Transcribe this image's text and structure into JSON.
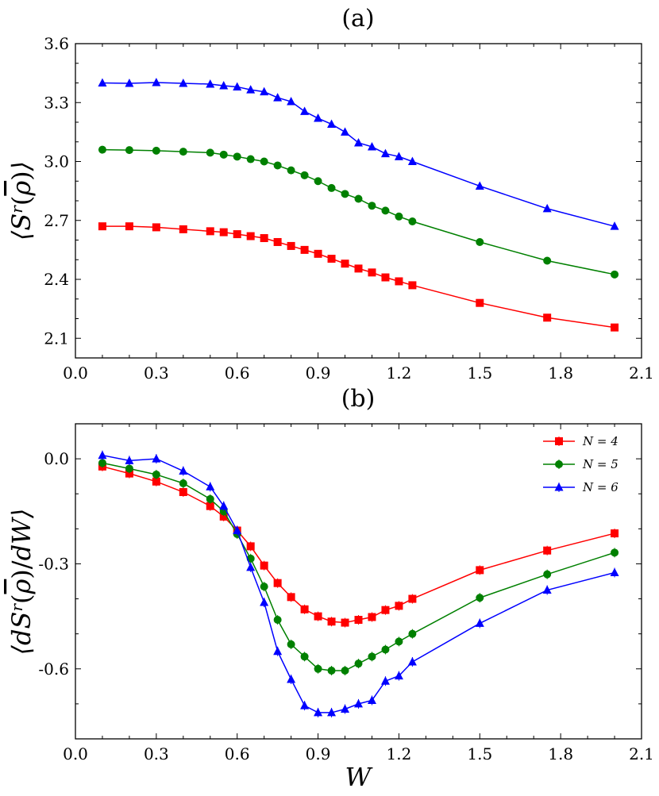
{
  "chart_data": [
    {
      "type": "line",
      "title": "(a)",
      "xlabel": "",
      "ylabel": "⟨S^r(ρ̄)⟩",
      "xlim": [
        0.0,
        2.1
      ],
      "ylim": [
        2.0,
        3.6
      ],
      "xticks": [
        "0.0",
        "0.3",
        "0.6",
        "0.9",
        "1.2",
        "1.5",
        "1.8",
        "2.1"
      ],
      "yticks": [
        "2.1",
        "2.4",
        "2.7",
        "3.0",
        "3.3",
        "3.6"
      ],
      "x": [
        0.1,
        0.2,
        0.3,
        0.4,
        0.5,
        0.55,
        0.6,
        0.65,
        0.7,
        0.75,
        0.8,
        0.85,
        0.9,
        0.95,
        1.0,
        1.05,
        1.1,
        1.15,
        1.2,
        1.25,
        1.5,
        1.75,
        2.0
      ],
      "series": [
        {
          "name": "N = 4",
          "color": "#ff0000",
          "marker": "square",
          "values": [
            2.67,
            2.67,
            2.665,
            2.655,
            2.645,
            2.64,
            2.63,
            2.62,
            2.61,
            2.59,
            2.57,
            2.55,
            2.53,
            2.505,
            2.48,
            2.455,
            2.435,
            2.41,
            2.39,
            2.37,
            2.28,
            2.205,
            2.155
          ]
        },
        {
          "name": "N = 5",
          "color": "#008000",
          "marker": "circle",
          "values": [
            3.06,
            3.058,
            3.055,
            3.05,
            3.045,
            3.035,
            3.025,
            3.012,
            3.0,
            2.98,
            2.955,
            2.93,
            2.9,
            2.865,
            2.835,
            2.81,
            2.775,
            2.75,
            2.72,
            2.695,
            2.59,
            2.495,
            2.425
          ]
        },
        {
          "name": "N = 6",
          "color": "#0000ff",
          "marker": "triangle",
          "values": [
            3.4,
            3.398,
            3.402,
            3.398,
            3.394,
            3.386,
            3.38,
            3.365,
            3.355,
            3.325,
            3.305,
            3.255,
            3.22,
            3.19,
            3.15,
            3.095,
            3.075,
            3.04,
            3.025,
            3.0,
            2.875,
            2.76,
            2.67
          ]
        }
      ]
    },
    {
      "type": "line",
      "title": "(b)",
      "xlabel": "W",
      "ylabel": "⟨dS^r(ρ̄)/dW⟩",
      "xlim": [
        0.0,
        2.1
      ],
      "ylim": [
        -0.8,
        0.1
      ],
      "xticks": [
        "0.0",
        "0.3",
        "0.6",
        "0.9",
        "1.2",
        "1.5",
        "1.8",
        "2.1"
      ],
      "yticks": [
        "0.0",
        "-0.3",
        "-0.6"
      ],
      "legend": "top-right",
      "x": [
        0.1,
        0.2,
        0.3,
        0.4,
        0.5,
        0.55,
        0.6,
        0.65,
        0.7,
        0.75,
        0.8,
        0.85,
        0.9,
        0.95,
        1.0,
        1.05,
        1.1,
        1.15,
        1.2,
        1.25,
        1.5,
        1.75,
        2.0
      ],
      "series": [
        {
          "name": "N = 4",
          "color": "#ff0000",
          "marker": "square",
          "values": [
            -0.022,
            -0.042,
            -0.065,
            -0.095,
            -0.135,
            -0.165,
            -0.205,
            -0.25,
            -0.305,
            -0.355,
            -0.395,
            -0.43,
            -0.45,
            -0.465,
            -0.468,
            -0.46,
            -0.452,
            -0.432,
            -0.42,
            -0.4,
            -0.318,
            -0.262,
            -0.213
          ]
        },
        {
          "name": "N = 5",
          "color": "#008000",
          "marker": "circle",
          "values": [
            -0.012,
            -0.028,
            -0.045,
            -0.07,
            -0.115,
            -0.15,
            -0.215,
            -0.285,
            -0.365,
            -0.46,
            -0.53,
            -0.565,
            -0.6,
            -0.605,
            -0.605,
            -0.585,
            -0.565,
            -0.545,
            -0.522,
            -0.5,
            -0.397,
            -0.33,
            -0.268
          ]
        },
        {
          "name": "N = 6",
          "color": "#0000ff",
          "marker": "triangle",
          "values": [
            0.01,
            -0.005,
            0.0,
            -0.035,
            -0.08,
            -0.135,
            -0.205,
            -0.31,
            -0.41,
            -0.55,
            -0.63,
            -0.705,
            -0.725,
            -0.725,
            -0.715,
            -0.7,
            -0.69,
            -0.635,
            -0.62,
            -0.58,
            -0.47,
            -0.375,
            -0.325
          ]
        }
      ]
    }
  ]
}
